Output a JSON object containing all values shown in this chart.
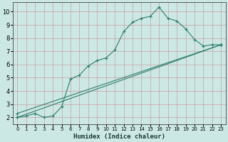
{
  "xlabel": "Humidex (Indice chaleur)",
  "bg_color": "#cce8e4",
  "grid_color": "#c8a0a0",
  "line_color": "#2e7d6e",
  "xlim": [
    -0.5,
    23.5
  ],
  "ylim": [
    1.5,
    10.7
  ],
  "xticks": [
    0,
    1,
    2,
    3,
    4,
    5,
    6,
    7,
    8,
    9,
    10,
    11,
    12,
    13,
    14,
    15,
    16,
    17,
    18,
    19,
    20,
    21,
    22,
    23
  ],
  "yticks": [
    2,
    3,
    4,
    5,
    6,
    7,
    8,
    9,
    10
  ],
  "curve1_x": [
    0,
    1,
    2,
    3,
    4,
    5,
    6,
    7,
    8,
    9,
    10,
    11,
    12,
    13,
    14,
    15,
    16,
    17,
    18,
    19,
    20,
    21,
    22,
    23
  ],
  "curve1_y": [
    2.0,
    2.1,
    2.3,
    2.0,
    2.1,
    2.8,
    4.9,
    5.2,
    5.9,
    6.3,
    6.5,
    7.1,
    8.5,
    9.2,
    9.5,
    9.65,
    10.35,
    9.5,
    9.3,
    8.7,
    7.9,
    7.4,
    7.5,
    7.5
  ],
  "line2_x": [
    0,
    23
  ],
  "line2_y": [
    2.0,
    7.5
  ],
  "line3_x": [
    0,
    23
  ],
  "line3_y": [
    2.3,
    7.5
  ]
}
